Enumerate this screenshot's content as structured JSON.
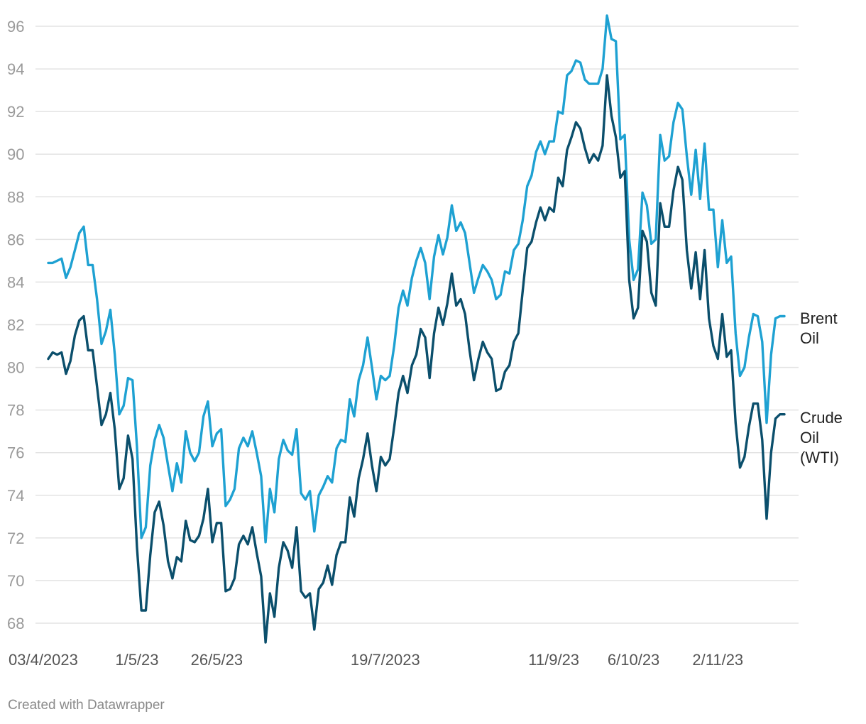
{
  "footer": {
    "credit": "Created with Datawrapper"
  },
  "chart_data": {
    "type": "line",
    "title": "",
    "xlabel": "",
    "ylabel": "",
    "ylim": [
      67,
      97
    ],
    "y_ticks": [
      68,
      70,
      72,
      74,
      76,
      78,
      80,
      82,
      84,
      86,
      88,
      90,
      92,
      94,
      96
    ],
    "x_tick_labels": [
      {
        "label": "03/4/2023",
        "index": 0
      },
      {
        "label": "1/5/23",
        "index": 20
      },
      {
        "label": "26/5/23",
        "index": 38
      },
      {
        "label": "19/7/2023",
        "index": 76
      },
      {
        "label": "11/9/23",
        "index": 114
      },
      {
        "label": "6/10/23",
        "index": 132
      },
      {
        "label": "2/11/23",
        "index": 151
      }
    ],
    "grid": true,
    "legend": "inline-right",
    "series": [
      {
        "name": "Brent Oil",
        "color": "#1ea1d2",
        "values": [
          84.9,
          84.9,
          85.0,
          85.1,
          84.2,
          84.7,
          85.5,
          86.3,
          86.6,
          84.8,
          84.8,
          83.2,
          81.1,
          81.7,
          82.7,
          80.6,
          77.8,
          78.2,
          79.5,
          79.4,
          76.3,
          72.0,
          72.5,
          75.4,
          76.6,
          77.3,
          76.7,
          75.4,
          74.2,
          75.5,
          74.6,
          77.0,
          76.0,
          75.6,
          76.0,
          77.7,
          78.4,
          76.3,
          76.9,
          77.1,
          73.5,
          73.8,
          74.3,
          76.2,
          76.7,
          76.3,
          77.0,
          76.0,
          74.9,
          71.8,
          74.3,
          73.2,
          75.7,
          76.6,
          76.1,
          75.9,
          77.1,
          74.1,
          73.8,
          74.2,
          72.3,
          74.0,
          74.4,
          74.9,
          74.6,
          76.2,
          76.6,
          76.5,
          78.5,
          77.7,
          79.4,
          80.1,
          81.4,
          80.0,
          78.5,
          79.6,
          79.4,
          79.6,
          81.0,
          82.8,
          83.6,
          82.9,
          84.2,
          85.0,
          85.6,
          84.9,
          83.2,
          85.2,
          86.2,
          85.3,
          86.1,
          87.6,
          86.4,
          86.8,
          86.3,
          84.9,
          83.5,
          84.2,
          84.8,
          84.5,
          84.1,
          83.2,
          83.4,
          84.5,
          84.4,
          85.5,
          85.8,
          86.9,
          88.5,
          89.0,
          90.1,
          90.6,
          90.0,
          90.6,
          90.6,
          92.0,
          91.9,
          93.7,
          93.9,
          94.4,
          94.3,
          93.5,
          93.3,
          93.3,
          93.3,
          94.0,
          96.5,
          95.4,
          95.3,
          90.7,
          90.9,
          86.0,
          84.1,
          84.6,
          88.2,
          87.6,
          85.8,
          86.0,
          90.9,
          89.7,
          89.9,
          91.5,
          92.4,
          92.1,
          89.9,
          88.1,
          90.2,
          87.9,
          90.5,
          87.4,
          87.4,
          84.7,
          86.9,
          84.9,
          85.2,
          81.6,
          79.6,
          80.0,
          81.4,
          82.5,
          82.4,
          81.2,
          77.4,
          80.6,
          82.3,
          82.4,
          82.4
        ]
      },
      {
        "name": "Crude Oil (WTI)",
        "color": "#0b4f6c",
        "values": [
          80.4,
          80.7,
          80.6,
          80.7,
          79.7,
          80.3,
          81.5,
          82.2,
          82.4,
          80.8,
          80.8,
          79.1,
          77.3,
          77.8,
          78.8,
          77.1,
          74.3,
          74.8,
          76.8,
          75.7,
          71.6,
          68.6,
          68.6,
          71.2,
          73.2,
          73.7,
          72.6,
          70.9,
          70.1,
          71.1,
          70.9,
          72.8,
          71.9,
          71.8,
          72.1,
          72.9,
          74.3,
          71.8,
          72.7,
          72.7,
          69.5,
          69.6,
          70.1,
          71.7,
          72.1,
          71.7,
          72.5,
          71.3,
          70.2,
          67.1,
          69.4,
          68.3,
          70.6,
          71.8,
          71.4,
          70.6,
          72.5,
          69.5,
          69.2,
          69.4,
          67.7,
          69.6,
          69.9,
          70.7,
          69.8,
          71.2,
          71.8,
          71.8,
          73.9,
          73.0,
          74.8,
          75.7,
          76.9,
          75.4,
          74.2,
          75.8,
          75.4,
          75.7,
          77.2,
          78.8,
          79.6,
          78.8,
          80.1,
          80.6,
          81.8,
          81.4,
          79.5,
          81.6,
          82.8,
          82.0,
          83.0,
          84.4,
          82.9,
          83.2,
          82.5,
          80.8,
          79.4,
          80.4,
          81.2,
          80.7,
          80.4,
          78.9,
          79.0,
          79.8,
          80.1,
          81.2,
          81.6,
          83.6,
          85.6,
          85.9,
          86.8,
          87.5,
          86.9,
          87.5,
          87.3,
          88.9,
          88.5,
          90.2,
          90.8,
          91.5,
          91.2,
          90.3,
          89.6,
          90.0,
          89.7,
          90.4,
          93.7,
          91.8,
          90.8,
          88.9,
          89.2,
          84.1,
          82.3,
          82.8,
          86.4,
          85.9,
          83.5,
          82.9,
          87.7,
          86.6,
          86.6,
          88.3,
          89.4,
          88.8,
          85.5,
          83.7,
          85.4,
          83.2,
          85.5,
          82.3,
          81.0,
          80.4,
          82.5,
          80.5,
          80.8,
          77.4,
          75.3,
          75.8,
          77.2,
          78.3,
          78.3,
          76.6,
          72.9,
          76.0,
          77.6,
          77.8,
          77.8
        ]
      }
    ],
    "series_labels": [
      {
        "series": 0,
        "lines": [
          "Brent",
          "Oil"
        ]
      },
      {
        "series": 1,
        "lines": [
          "Crude",
          "Oil",
          "(WTI)"
        ]
      }
    ]
  }
}
